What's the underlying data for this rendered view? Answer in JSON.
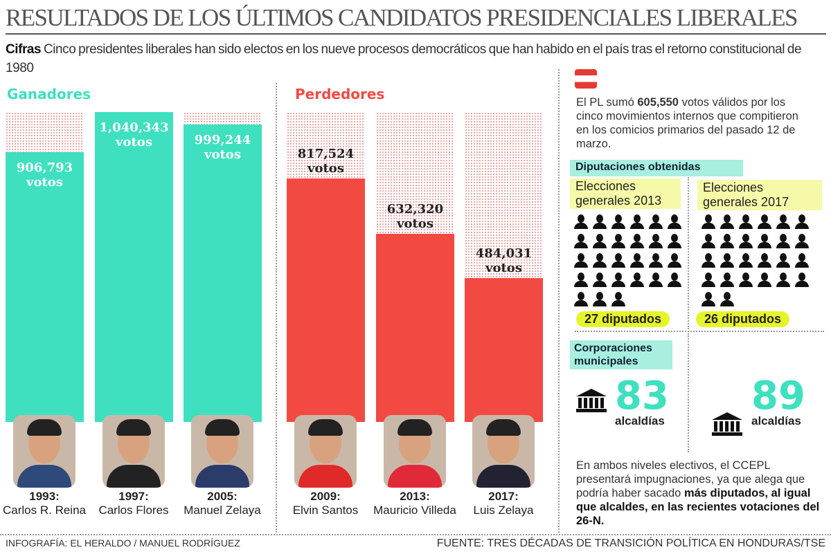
{
  "title": "RESULTADOS DE LOS ÚLTIMOS CANDIDATOS PRESIDENCIALES LIBERALES",
  "intro": {
    "lead": "Cifras",
    "text": " Cinco presidentes liberales han sido electos en los nueve procesos democráticos que han habido en el país tras el retorno constitucional de 1980"
  },
  "colors": {
    "winners": "#3ee0bf",
    "losers": "#f24a43",
    "highlight": "#e6f52a",
    "label_bg": "#a8efe0"
  },
  "chart_data": {
    "type": "bar",
    "unit": "votos",
    "groups": [
      {
        "name": "Ganadores",
        "color": "#3ee0bf"
      },
      {
        "name": "Perdedores",
        "color": "#f24a43"
      }
    ],
    "categories": [
      "1993: Carlos R. Reina",
      "1997: Carlos Flores",
      "2005: Manuel Zelaya",
      "2009: Elvin Santos",
      "2013: Mauricio Villeda",
      "2017: Luis Zelaya"
    ],
    "bars": [
      {
        "year": "1993:",
        "name": "Carlos R. Reina",
        "value": 906793,
        "label": "906,793",
        "group": "Ganadores"
      },
      {
        "year": "1997:",
        "name": "Carlos Flores",
        "value": 1040343,
        "label": "1,040,343",
        "group": "Ganadores"
      },
      {
        "year": "2005:",
        "name": "Manuel Zelaya",
        "value": 999244,
        "label": "999,244",
        "group": "Ganadores"
      },
      {
        "year": "2009:",
        "name": "Elvin Santos",
        "value": 817524,
        "label": "817,524",
        "group": "Perdedores"
      },
      {
        "year": "2013:",
        "name": "Mauricio Villeda",
        "value": 632320,
        "label": "632,320",
        "group": "Perdedores"
      },
      {
        "year": "2017:",
        "name": "Luis Zelaya",
        "value": 484031,
        "label": "484,031",
        "group": "Perdedores"
      }
    ],
    "ylim": [
      0,
      1040343
    ]
  },
  "side": {
    "pl_text_a": "El PL sumó ",
    "pl_votes": "605,550",
    "pl_text_b": " votos válidos por los cinco movimientos internos que compitieron en los comicios primarios del pasado 12 de marzo.",
    "diputaciones_label": "Diputaciones obtenidas",
    "elections": [
      {
        "label": "Elecciones generales 2013",
        "count": 27,
        "badge": "27 diputados",
        "alcaldias": "83"
      },
      {
        "label": "Elecciones generales 2017",
        "count": 26,
        "badge": "26 diputados",
        "alcaldias": "89"
      }
    ],
    "corporaciones_label": "Corporaciones municipales",
    "alcaldias_word": "alcaldías",
    "note_a": "En ambos niveles electivos, el CCEPL presentará impugnaciones, ya que alega que podría haber sacado ",
    "note_b": "más diputados, al igual que alcaldes, en las recientes votaciones del 26-N."
  },
  "footer": {
    "credit": "INFOGRAFÍA: EL HERALDO / MANUEL RODRÍGUEZ",
    "source": "FUENTE: TRES DÉCADAS DE TRANSICIÓN POLÍTICA EN HONDURAS/TSE"
  }
}
